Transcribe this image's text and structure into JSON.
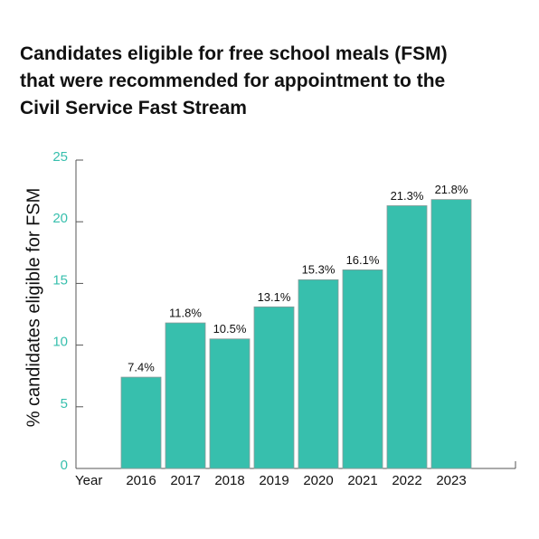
{
  "chart_data": {
    "type": "bar",
    "title_lines": [
      "Candidates eligible for free school meals (FSM)",
      "that were recommended for appointment to the",
      "Civil Service Fast Stream"
    ],
    "y_label": "% candidates eligible for FSM",
    "x_label": "Year",
    "categories": [
      "2016",
      "2017",
      "2018",
      "2019",
      "2020",
      "2021",
      "2022",
      "2023"
    ],
    "values": [
      7.4,
      11.8,
      10.5,
      13.1,
      15.3,
      16.1,
      21.3,
      21.8
    ],
    "value_labels": [
      "7.4%",
      "11.8%",
      "10.5%",
      "13.1%",
      "15.3%",
      "16.1%",
      "21.3%",
      "21.8%"
    ],
    "color": "#37bfad",
    "ylim": [
      0,
      25
    ],
    "yticks": [
      0,
      5,
      10,
      15,
      20,
      25
    ]
  }
}
